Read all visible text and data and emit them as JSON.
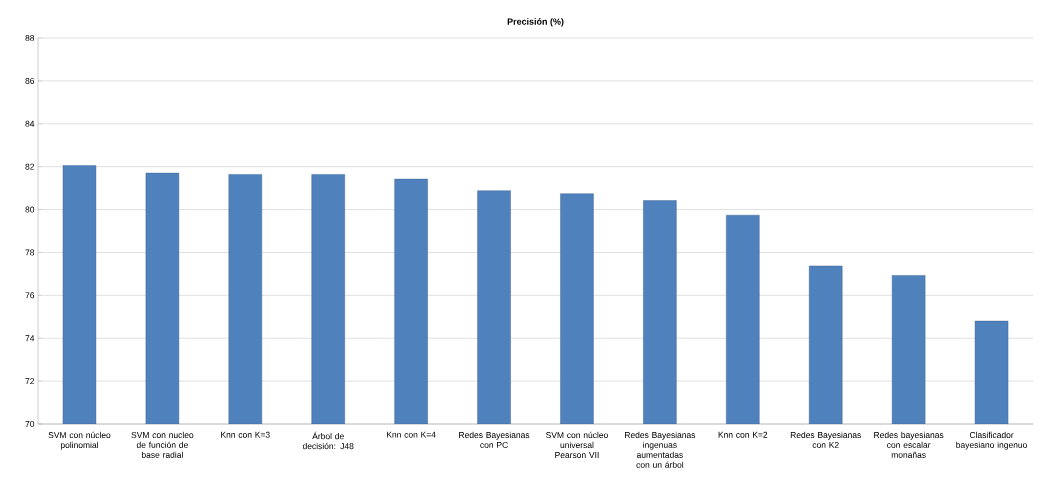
{
  "chart_data": {
    "type": "bar",
    "title": "Precisión (%)",
    "categories": [
      "SVM con núcleo polinomial",
      "SVM con nucleo de función de base radial",
      "Knn con K=3",
      "Árbol de decisión: J48",
      "Knn con K=4",
      "Redes Bayesianas con PC",
      "SVM con núcleo universal Pearson VII",
      "Redes Bayesianas ingenuas aumentadas con un árbol",
      "Knn con K=2",
      "Redes Bayesianas con K2",
      "Redes bayesianas con escalar monañas",
      "Clasificador bayesiano ingenuo"
    ],
    "values": [
      82.06,
      81.7,
      81.64,
      81.64,
      81.42,
      80.88,
      80.74,
      80.42,
      79.74,
      77.37,
      76.93,
      74.8
    ],
    "color": "#4f81bd",
    "ylim": [
      70,
      88
    ],
    "yticks": [
      70,
      72,
      74,
      76,
      78,
      80,
      82,
      84,
      86,
      88
    ],
    "grid": "y"
  }
}
